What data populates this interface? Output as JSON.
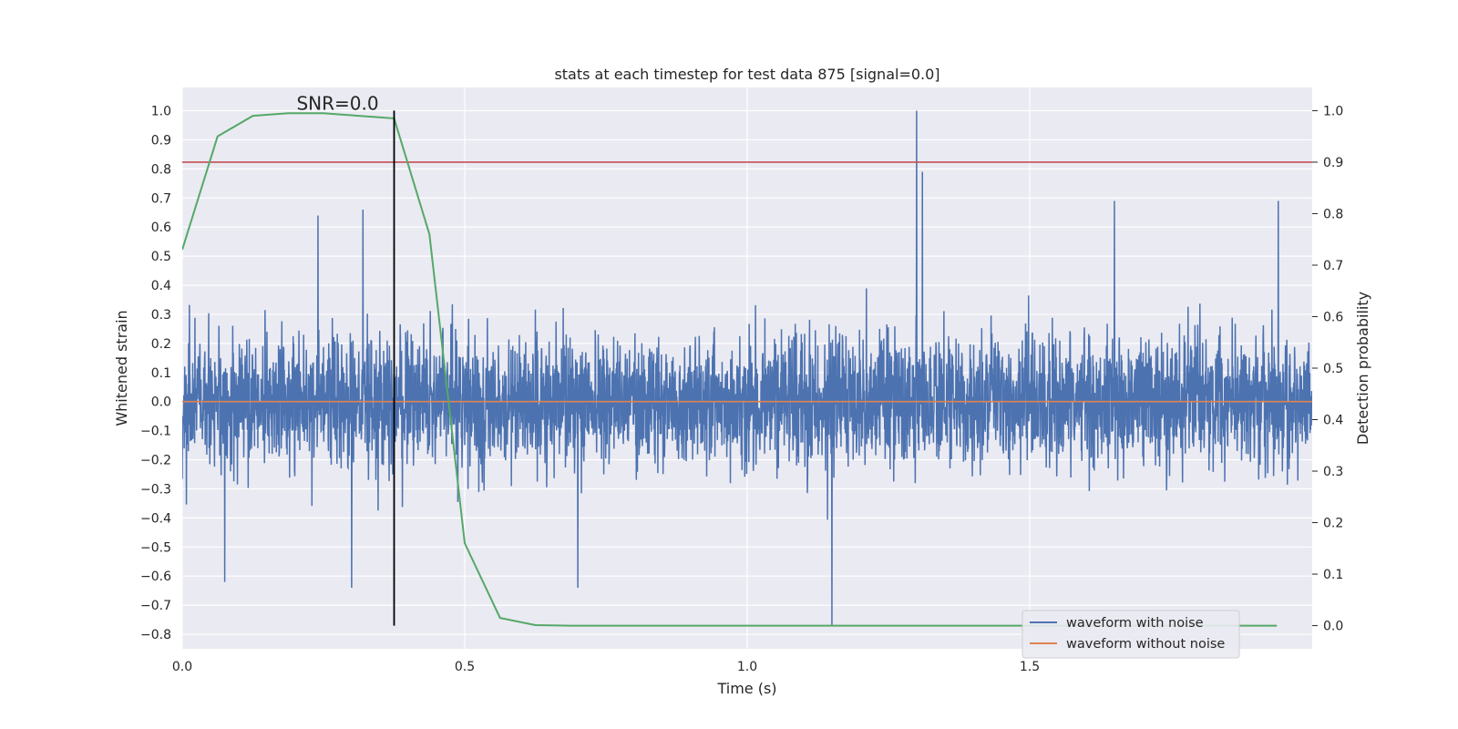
{
  "chart_data": {
    "type": "line",
    "title": "stats at each timestep for test data 875 [signal=0.0]",
    "xlabel": "Time (s)",
    "ylabel_left": "Whitened strain",
    "ylabel_right": "Detection probability",
    "xlim": [
      0.0,
      2.0
    ],
    "ylim_left": [
      -0.85,
      1.08
    ],
    "ylim_right": [
      -0.045,
      1.045
    ],
    "x_ticks": [
      "0.0",
      "0.5",
      "1.0",
      "1.5"
    ],
    "y_ticks_left": [
      "1.0",
      "0.9",
      "0.8",
      "0.7",
      "0.6",
      "0.5",
      "0.4",
      "0.3",
      "0.2",
      "0.1",
      "0.0",
      "−0.1",
      "−0.2",
      "−0.3",
      "−0.4",
      "−0.5",
      "−0.6",
      "−0.7",
      "−0.8"
    ],
    "y_ticks_right": [
      "1.0",
      "0.9",
      "0.8",
      "0.7",
      "0.6",
      "0.5",
      "0.4",
      "0.3",
      "0.2",
      "0.1",
      "0.0"
    ],
    "grid": true,
    "legend_position": "lower-right",
    "series": [
      {
        "name": "waveform with noise",
        "axis": "left",
        "color": "#4c72b0",
        "kind": "noise",
        "sample_rate": 2048,
        "range": [
          -0.77,
          1.0
        ],
        "peaks": [
          {
            "x": 1.3,
            "y": 1.0
          },
          {
            "x": 1.31,
            "y": 0.79
          },
          {
            "x": 1.15,
            "y": -0.77
          },
          {
            "x": 0.3,
            "y": -0.64
          },
          {
            "x": 0.7,
            "y": -0.64
          },
          {
            "x": 0.075,
            "y": -0.62
          },
          {
            "x": 0.24,
            "y": 0.64
          },
          {
            "x": 0.32,
            "y": 0.66
          },
          {
            "x": 1.65,
            "y": 0.69
          },
          {
            "x": 1.94,
            "y": 0.69
          }
        ]
      },
      {
        "name": "waveform without noise",
        "axis": "left",
        "color": "#dd8452",
        "x": [
          0.0,
          2.0
        ],
        "y": [
          0.0,
          0.0
        ]
      },
      {
        "name": "",
        "axis": "right",
        "color": "#55a868",
        "x": [
          0.0,
          0.0625,
          0.125,
          0.1875,
          0.25,
          0.3125,
          0.375,
          0.4375,
          0.5,
          0.5625,
          0.625,
          0.6875,
          0.75,
          0.8125,
          0.875,
          0.9375,
          1.0,
          1.0625,
          1.125,
          1.1875,
          1.25,
          1.3125,
          1.375,
          1.4375,
          1.5,
          1.5625,
          1.625,
          1.6875,
          1.75,
          1.8125,
          1.875,
          1.9375
        ],
        "y": [
          0.73,
          0.95,
          0.99,
          0.995,
          0.995,
          0.99,
          0.985,
          0.76,
          0.16,
          0.015,
          0.001,
          0.0,
          0.0,
          0.0,
          0.0,
          0.0,
          0.0,
          0.0,
          0.0,
          0.0,
          0.0,
          0.0,
          0.0,
          0.0,
          0.0,
          0.0,
          0.0,
          0.0,
          0.0,
          0.0,
          0.0,
          0.0
        ]
      }
    ],
    "threshold_line": {
      "axis": "right",
      "y": 0.9,
      "color": "#c44e52"
    },
    "marker_line": {
      "x": 0.375,
      "y_range_right": [
        0.0,
        1.0
      ],
      "color": "#000000"
    },
    "annotation": {
      "text": "SNR=0.0",
      "x": 0.275,
      "y_right": 1.0
    }
  }
}
